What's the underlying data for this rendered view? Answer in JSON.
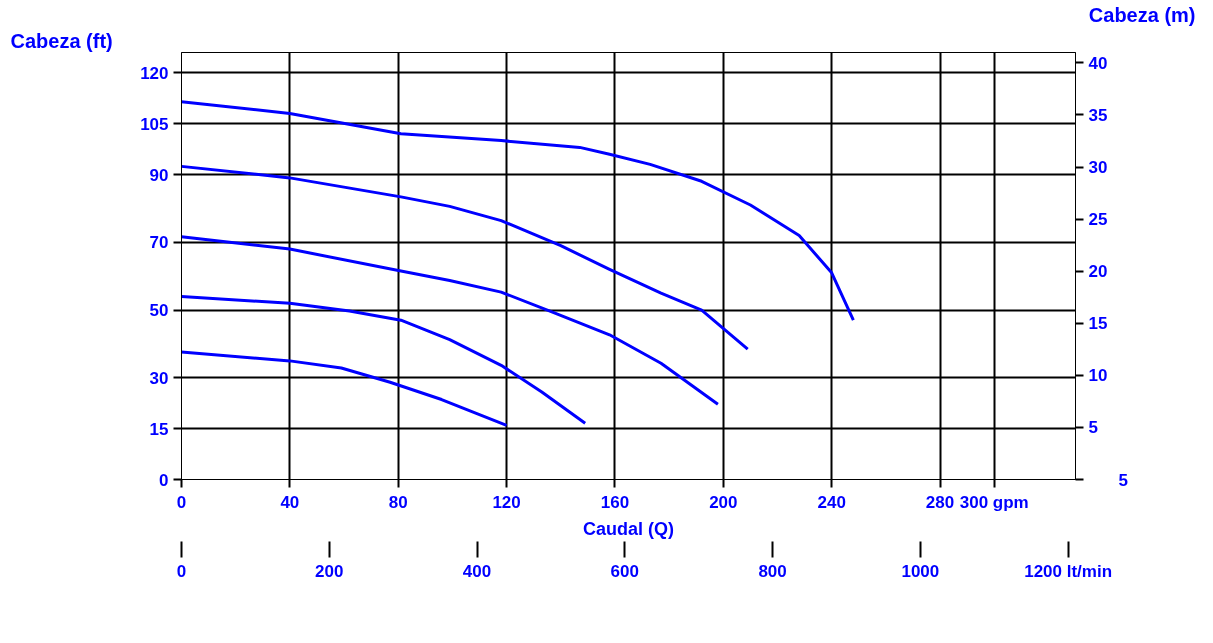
{
  "chart_data": {
    "type": "line",
    "xlabel": "Caudal (Q)",
    "ylabel": "Cabeza (ft)",
    "y2label": "Cabeza (m)",
    "xlim": [
      0,
      330
    ],
    "xticks": [
      0,
      40,
      80,
      120,
      160,
      200,
      240,
      280,
      {
        "value": 300,
        "label": "300 gpm"
      }
    ],
    "x2lim": [
      0,
      1210
    ],
    "x2ticks": [
      0,
      200,
      400,
      600,
      800,
      1000,
      {
        "value": 1200,
        "label": "1200 lt/min"
      }
    ],
    "ylim": [
      0,
      126
    ],
    "yticks": [
      0,
      15,
      30,
      50,
      70,
      90,
      105,
      120
    ],
    "y2lim": [
      0,
      41
    ],
    "annotations": [
      "5"
    ],
    "y2ticks": [
      {
        "value": 0,
        "label": null
      },
      5,
      10,
      15,
      20,
      25,
      30,
      35,
      40
    ],
    "grid": true,
    "marker": "none",
    "line_style": "solid",
    "series": [
      {
        "color": "#0000ff",
        "x": [
          0,
          40,
          81,
          118,
          147,
          158,
          173,
          192,
          210,
          228,
          240,
          248
        ],
        "values": [
          111.5,
          108,
          102,
          100,
          98,
          96,
          93,
          88,
          81,
          72,
          61,
          47
        ]
      },
      {
        "color": "#0000ff",
        "x": [
          0,
          40,
          81,
          99,
          118,
          140,
          158,
          177,
          192,
          209
        ],
        "values": [
          92.4,
          89,
          83.4,
          80.6,
          76.4,
          69,
          62,
          55,
          50,
          38.5
        ]
      },
      {
        "color": "#0000ff",
        "x": [
          0,
          40,
          81,
          99,
          118,
          136,
          158,
          177,
          198
        ],
        "values": [
          71.6,
          68,
          61.5,
          58.7,
          55.3,
          49.7,
          42.7,
          34.3,
          22.2
        ]
      },
      {
        "color": "#0000ff",
        "x": [
          0,
          40,
          62,
          81,
          99,
          118,
          133,
          149
        ],
        "values": [
          54,
          52,
          49.7,
          47,
          41.3,
          33.7,
          25.8,
          16.6
        ]
      },
      {
        "color": "#0000ff",
        "x": [
          0,
          40,
          59,
          77,
          96,
          120
        ],
        "values": [
          37.6,
          35,
          32.9,
          28.7,
          23.6,
          16
        ]
      }
    ]
  }
}
